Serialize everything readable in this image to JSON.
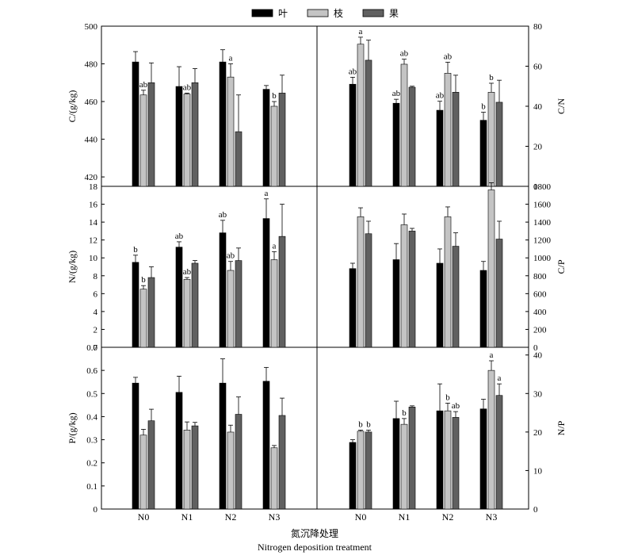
{
  "legend": [
    {
      "label": "叶",
      "color": "#000000"
    },
    {
      "label": "枝",
      "color": "#c4c4c4"
    },
    {
      "label": "果",
      "color": "#606060"
    }
  ],
  "x_title_cn": "氮沉降处理",
  "x_title_en": "Nitrogen deposition treatment",
  "categories": [
    "N0",
    "N1",
    "N2",
    "N3"
  ],
  "chart_data": [
    {
      "type": "bar",
      "panel": "C",
      "ylabel": "C/(g/kg)",
      "ylim": [
        415,
        500
      ],
      "yticks": [
        420,
        440,
        460,
        480,
        500
      ],
      "categories": [
        "N0",
        "N1",
        "N2",
        "N3"
      ],
      "series": [
        {
          "name": "叶",
          "values": [
            481,
            468,
            481,
            466.5
          ],
          "errors": [
            5.5,
            10.5,
            6.5,
            2
          ],
          "sig": [
            "",
            "",
            "",
            ""
          ]
        },
        {
          "name": "枝",
          "values": [
            463.5,
            464,
            473,
            457.5
          ],
          "errors": [
            2.5,
            0.5,
            7,
            2.5
          ],
          "sig": [
            "ab",
            "ab",
            "a",
            "b"
          ]
        },
        {
          "name": "果",
          "values": [
            470,
            470,
            444,
            464.5
          ],
          "errors": [
            10.5,
            7.5,
            19.5,
            9.5
          ],
          "sig": [
            "",
            "",
            "",
            ""
          ]
        }
      ]
    },
    {
      "type": "bar",
      "panel": "C/N",
      "ylabel": "C/N",
      "ylim": [
        0,
        80
      ],
      "yticks": [
        0,
        20,
        40,
        60,
        80
      ],
      "categories": [
        "N0",
        "N1",
        "N2",
        "N3"
      ],
      "series": [
        {
          "name": "叶",
          "values": [
            51,
            41.5,
            38,
            33
          ],
          "errors": [
            3.5,
            2,
            4.5,
            4
          ],
          "sig": [
            "ab",
            "ab",
            "ab",
            "b"
          ]
        },
        {
          "name": "枝",
          "values": [
            71,
            61,
            56.5,
            47
          ],
          "errors": [
            3.5,
            2.5,
            5.5,
            4.5
          ],
          "sig": [
            "a",
            "ab",
            "ab",
            "b"
          ]
        },
        {
          "name": "果",
          "values": [
            63,
            49.5,
            47,
            42
          ],
          "errors": [
            10,
            0.5,
            8.5,
            11
          ],
          "sig": [
            "",
            "",
            "",
            ""
          ]
        }
      ]
    },
    {
      "type": "bar",
      "panel": "N",
      "ylabel": "N/(g/kg)",
      "ylim": [
        0,
        18
      ],
      "yticks": [
        0,
        2,
        4,
        6,
        8,
        10,
        12,
        14,
        16,
        18
      ],
      "categories": [
        "N0",
        "N1",
        "N2",
        "N3"
      ],
      "series": [
        {
          "name": "叶",
          "values": [
            9.5,
            11.2,
            12.8,
            14.4
          ],
          "errors": [
            0.8,
            0.6,
            1.4,
            2.2
          ],
          "sig": [
            "b",
            "ab",
            "ab",
            "a"
          ]
        },
        {
          "name": "枝",
          "values": [
            6.5,
            7.6,
            8.6,
            9.8
          ],
          "errors": [
            0.4,
            0.2,
            1,
            0.9
          ],
          "sig": [
            "b",
            "ab",
            "ab",
            "a"
          ]
        },
        {
          "name": "果",
          "values": [
            7.8,
            9.4,
            9.7,
            12.4
          ],
          "errors": [
            1.2,
            0.3,
            1.4,
            3.6
          ],
          "sig": [
            "",
            "",
            "",
            ""
          ]
        }
      ]
    },
    {
      "type": "bar",
      "panel": "C/P",
      "ylabel": "C/P",
      "ylim": [
        0,
        1800
      ],
      "yticks": [
        0,
        200,
        400,
        600,
        800,
        1000,
        1200,
        1400,
        1600,
        1800
      ],
      "categories": [
        "N0",
        "N1",
        "N2",
        "N3"
      ],
      "series": [
        {
          "name": "叶",
          "values": [
            880,
            980,
            940,
            860
          ],
          "errors": [
            60,
            180,
            160,
            100
          ],
          "sig": [
            "",
            "",
            "",
            ""
          ]
        },
        {
          "name": "枝",
          "values": [
            1460,
            1370,
            1460,
            1760
          ],
          "errors": [
            100,
            120,
            110,
            80
          ],
          "sig": [
            "",
            "",
            "",
            ""
          ]
        },
        {
          "name": "果",
          "values": [
            1270,
            1300,
            1130,
            1210
          ],
          "errors": [
            140,
            30,
            150,
            200
          ],
          "sig": [
            "",
            "",
            "",
            ""
          ]
        }
      ]
    },
    {
      "type": "bar",
      "panel": "P",
      "ylabel": "P/(g/kg)",
      "ylim": [
        0,
        0.7
      ],
      "yticks": [
        0,
        0.1,
        0.2,
        0.3,
        0.4,
        0.5,
        0.6,
        0.7
      ],
      "categories": [
        "N0",
        "N1",
        "N2",
        "N3"
      ],
      "series": [
        {
          "name": "叶",
          "values": [
            0.545,
            0.505,
            0.545,
            0.553
          ],
          "errors": [
            0.025,
            0.07,
            0.105,
            0.06
          ],
          "sig": [
            "",
            "",
            "",
            ""
          ]
        },
        {
          "name": "枝",
          "values": [
            0.32,
            0.342,
            0.333,
            0.265
          ],
          "errors": [
            0.025,
            0.035,
            0.03,
            0.01
          ],
          "sig": [
            "",
            "",
            "",
            ""
          ]
        },
        {
          "name": "果",
          "values": [
            0.382,
            0.36,
            0.41,
            0.405
          ],
          "errors": [
            0.05,
            0.015,
            0.075,
            0.075
          ],
          "sig": [
            "",
            "",
            "",
            ""
          ]
        }
      ]
    },
    {
      "type": "bar",
      "panel": "N/P",
      "ylabel": "N/P",
      "ylim": [
        0,
        42
      ],
      "yticks": [
        0,
        10,
        20,
        30,
        40
      ],
      "categories": [
        "N0",
        "N1",
        "N2",
        "N3"
      ],
      "series": [
        {
          "name": "叶",
          "values": [
            17.3,
            23.5,
            25.5,
            26
          ],
          "errors": [
            0.7,
            4.5,
            7,
            2.5
          ],
          "sig": [
            "",
            "",
            "",
            ""
          ]
        },
        {
          "name": "枝",
          "values": [
            20.2,
            22,
            25.5,
            36
          ],
          "errors": [
            0.3,
            1.5,
            2,
            2.5
          ],
          "sig": [
            "b",
            "b",
            "b",
            "a"
          ]
        },
        {
          "name": "果",
          "values": [
            20,
            26.5,
            23.8,
            29.5
          ],
          "errors": [
            0.5,
            0.3,
            1.5,
            3
          ],
          "sig": [
            "b",
            "",
            "ab",
            "a"
          ]
        }
      ]
    }
  ]
}
